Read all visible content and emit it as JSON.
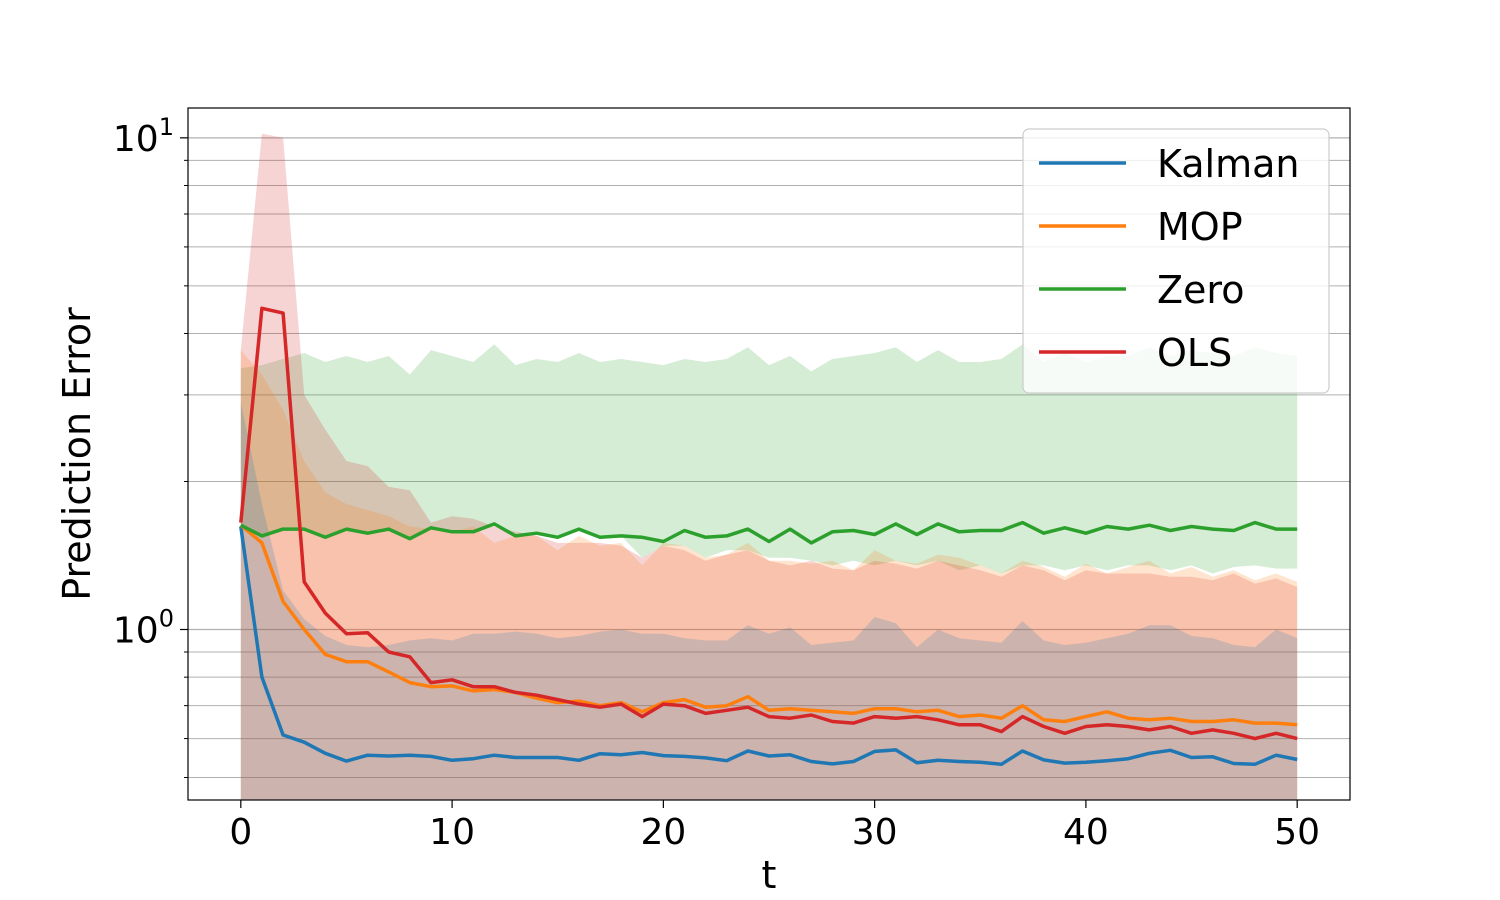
{
  "chart_data": {
    "type": "line",
    "title": "",
    "xlabel": "t",
    "ylabel": "Prediction Error",
    "yscale": "log",
    "xlim": [
      -2.5,
      52.5
    ],
    "ylim": [
      0.45,
      11.5
    ],
    "xticks": [
      0,
      10,
      20,
      30,
      40,
      50
    ],
    "xtick_labels": [
      "0",
      "10",
      "20",
      "30",
      "40",
      "50"
    ],
    "yticks": [
      1,
      10
    ],
    "ytick_labels": [
      {
        "base": "10",
        "exp": "0"
      },
      {
        "base": "10",
        "exp": "1"
      }
    ],
    "grid": "y-major-and-minor",
    "legend_position": "top-right",
    "x": [
      0,
      1,
      2,
      3,
      4,
      5,
      6,
      7,
      8,
      9,
      10,
      11,
      12,
      13,
      14,
      15,
      16,
      17,
      18,
      19,
      20,
      21,
      22,
      23,
      24,
      25,
      26,
      27,
      28,
      29,
      30,
      31,
      32,
      33,
      34,
      35,
      36,
      37,
      38,
      39,
      40,
      41,
      42,
      43,
      44,
      45,
      46,
      47,
      48,
      49,
      50
    ],
    "series": [
      {
        "name": "Kalman",
        "color": "#1f77b4",
        "values": [
          1.62,
          0.8,
          0.61,
          0.59,
          0.56,
          0.54,
          0.555,
          0.553,
          0.555,
          0.552,
          0.542,
          0.546,
          0.555,
          0.549,
          0.549,
          0.549,
          0.542,
          0.559,
          0.556,
          0.562,
          0.554,
          0.552,
          0.548,
          0.541,
          0.566,
          0.553,
          0.556,
          0.539,
          0.533,
          0.539,
          0.565,
          0.569,
          0.536,
          0.542,
          0.539,
          0.537,
          0.532,
          0.566,
          0.543,
          0.535,
          0.537,
          0.541,
          0.546,
          0.56,
          0.568,
          0.549,
          0.551,
          0.534,
          0.532,
          0.555,
          0.544
        ],
        "band_low": [
          0.45,
          0.45,
          0.45,
          0.45,
          0.45,
          0.45,
          0.45,
          0.45,
          0.45,
          0.45,
          0.45,
          0.45,
          0.45,
          0.45,
          0.45,
          0.45,
          0.45,
          0.45,
          0.45,
          0.45,
          0.45,
          0.45,
          0.45,
          0.45,
          0.45,
          0.45,
          0.45,
          0.45,
          0.45,
          0.45,
          0.45,
          0.45,
          0.45,
          0.45,
          0.45,
          0.45,
          0.45,
          0.45,
          0.45,
          0.45,
          0.45,
          0.45,
          0.45,
          0.45,
          0.45,
          0.45,
          0.45,
          0.45,
          0.45,
          0.45,
          0.45
        ],
        "band_high": [
          2.9,
          1.8,
          1.2,
          1.05,
          0.97,
          0.93,
          0.92,
          0.93,
          0.95,
          0.96,
          0.95,
          0.98,
          0.98,
          0.99,
          0.98,
          0.96,
          0.97,
          0.99,
          1.0,
          0.98,
          0.98,
          0.96,
          0.95,
          0.95,
          1.02,
          0.98,
          1.01,
          0.93,
          0.94,
          0.95,
          1.06,
          1.03,
          0.92,
          1.0,
          0.96,
          0.95,
          0.94,
          1.04,
          0.95,
          0.93,
          0.94,
          0.96,
          0.98,
          1.02,
          1.02,
          0.97,
          0.96,
          0.93,
          0.92,
          1.0,
          0.96
        ]
      },
      {
        "name": "MOP",
        "color": "#ff7f0e",
        "values": [
          1.63,
          1.5,
          1.14,
          1.0,
          0.89,
          0.86,
          0.86,
          0.82,
          0.78,
          0.765,
          0.768,
          0.75,
          0.755,
          0.745,
          0.725,
          0.71,
          0.715,
          0.7,
          0.71,
          0.68,
          0.71,
          0.72,
          0.695,
          0.7,
          0.73,
          0.685,
          0.69,
          0.685,
          0.68,
          0.675,
          0.69,
          0.69,
          0.68,
          0.685,
          0.665,
          0.67,
          0.66,
          0.7,
          0.655,
          0.65,
          0.665,
          0.68,
          0.66,
          0.655,
          0.66,
          0.65,
          0.65,
          0.655,
          0.645,
          0.645,
          0.64
        ],
        "band_low": [
          0.45,
          0.45,
          0.45,
          0.45,
          0.45,
          0.45,
          0.45,
          0.45,
          0.45,
          0.45,
          0.45,
          0.45,
          0.45,
          0.45,
          0.45,
          0.45,
          0.45,
          0.45,
          0.45,
          0.45,
          0.45,
          0.45,
          0.45,
          0.45,
          0.45,
          0.45,
          0.45,
          0.45,
          0.45,
          0.45,
          0.45,
          0.45,
          0.45,
          0.45,
          0.45,
          0.45,
          0.45,
          0.45,
          0.45,
          0.45,
          0.45,
          0.45,
          0.45,
          0.45,
          0.45,
          0.45,
          0.45,
          0.45,
          0.45,
          0.45,
          0.45
        ],
        "band_high": [
          3.7,
          3.3,
          2.8,
          2.2,
          1.9,
          1.8,
          1.75,
          1.7,
          1.62,
          1.6,
          1.58,
          1.62,
          1.5,
          1.55,
          1.55,
          1.45,
          1.55,
          1.48,
          1.5,
          1.35,
          1.5,
          1.48,
          1.4,
          1.42,
          1.5,
          1.38,
          1.38,
          1.36,
          1.38,
          1.32,
          1.45,
          1.38,
          1.36,
          1.42,
          1.4,
          1.35,
          1.3,
          1.38,
          1.34,
          1.28,
          1.36,
          1.3,
          1.34,
          1.38,
          1.3,
          1.34,
          1.28,
          1.32,
          1.26,
          1.3,
          1.25
        ]
      },
      {
        "name": "Zero",
        "color": "#2ca02c",
        "values": [
          1.63,
          1.55,
          1.6,
          1.6,
          1.54,
          1.6,
          1.57,
          1.6,
          1.53,
          1.61,
          1.58,
          1.58,
          1.64,
          1.55,
          1.57,
          1.54,
          1.6,
          1.54,
          1.55,
          1.54,
          1.51,
          1.59,
          1.54,
          1.55,
          1.6,
          1.51,
          1.6,
          1.5,
          1.58,
          1.59,
          1.56,
          1.64,
          1.56,
          1.64,
          1.58,
          1.59,
          1.59,
          1.65,
          1.57,
          1.61,
          1.57,
          1.62,
          1.6,
          1.63,
          1.59,
          1.62,
          1.6,
          1.59,
          1.65,
          1.6,
          1.6
        ],
        "band_low": [
          1.63,
          1.55,
          1.6,
          1.6,
          1.54,
          1.6,
          1.57,
          1.6,
          1.53,
          1.61,
          1.58,
          1.58,
          1.64,
          1.55,
          1.57,
          1.54,
          1.6,
          1.54,
          1.55,
          1.4,
          1.48,
          1.48,
          1.4,
          1.45,
          1.45,
          1.4,
          1.4,
          1.38,
          1.35,
          1.38,
          1.35,
          1.38,
          1.35,
          1.38,
          1.32,
          1.35,
          1.3,
          1.35,
          1.35,
          1.32,
          1.35,
          1.32,
          1.35,
          1.35,
          1.32,
          1.35,
          1.3,
          1.34,
          1.35,
          1.33,
          1.33
        ],
        "band_high": [
          3.4,
          3.45,
          3.55,
          3.65,
          3.5,
          3.6,
          3.5,
          3.6,
          3.3,
          3.7,
          3.6,
          3.5,
          3.8,
          3.45,
          3.55,
          3.5,
          3.65,
          3.5,
          3.55,
          3.5,
          3.45,
          3.55,
          3.5,
          3.55,
          3.75,
          3.45,
          3.6,
          3.35,
          3.55,
          3.6,
          3.65,
          3.75,
          3.5,
          3.7,
          3.5,
          3.5,
          3.55,
          3.8,
          3.5,
          3.65,
          3.5,
          3.6,
          3.6,
          3.75,
          3.6,
          3.7,
          3.65,
          3.6,
          3.75,
          3.65,
          3.6
        ]
      },
      {
        "name": "OLS",
        "color": "#d62728",
        "values": [
          1.65,
          4.5,
          4.4,
          1.25,
          1.08,
          0.98,
          0.985,
          0.9,
          0.88,
          0.78,
          0.79,
          0.765,
          0.765,
          0.745,
          0.735,
          0.72,
          0.705,
          0.695,
          0.705,
          0.665,
          0.705,
          0.7,
          0.675,
          0.685,
          0.695,
          0.665,
          0.66,
          0.67,
          0.65,
          0.645,
          0.665,
          0.66,
          0.665,
          0.655,
          0.64,
          0.64,
          0.62,
          0.665,
          0.635,
          0.615,
          0.635,
          0.64,
          0.635,
          0.625,
          0.635,
          0.615,
          0.625,
          0.615,
          0.6,
          0.615,
          0.6
        ],
        "band_low": [
          0.45,
          0.45,
          0.45,
          0.45,
          0.45,
          0.45,
          0.45,
          0.45,
          0.45,
          0.45,
          0.45,
          0.45,
          0.45,
          0.45,
          0.45,
          0.45,
          0.45,
          0.45,
          0.45,
          0.45,
          0.45,
          0.45,
          0.45,
          0.45,
          0.45,
          0.45,
          0.45,
          0.45,
          0.45,
          0.45,
          0.45,
          0.45,
          0.45,
          0.45,
          0.45,
          0.45,
          0.45,
          0.45,
          0.45,
          0.45,
          0.45,
          0.45,
          0.45,
          0.45,
          0.45,
          0.45,
          0.45,
          0.45,
          0.45,
          0.45,
          0.45
        ],
        "band_high": [
          3.7,
          10.2,
          10.0,
          3.0,
          2.55,
          2.2,
          2.15,
          1.95,
          1.92,
          1.65,
          1.7,
          1.68,
          1.62,
          1.58,
          1.55,
          1.5,
          1.5,
          1.5,
          1.48,
          1.4,
          1.48,
          1.45,
          1.38,
          1.42,
          1.45,
          1.38,
          1.35,
          1.38,
          1.33,
          1.32,
          1.38,
          1.36,
          1.33,
          1.38,
          1.35,
          1.32,
          1.28,
          1.35,
          1.32,
          1.26,
          1.32,
          1.3,
          1.3,
          1.3,
          1.28,
          1.28,
          1.26,
          1.3,
          1.24,
          1.27,
          1.22
        ]
      }
    ]
  }
}
